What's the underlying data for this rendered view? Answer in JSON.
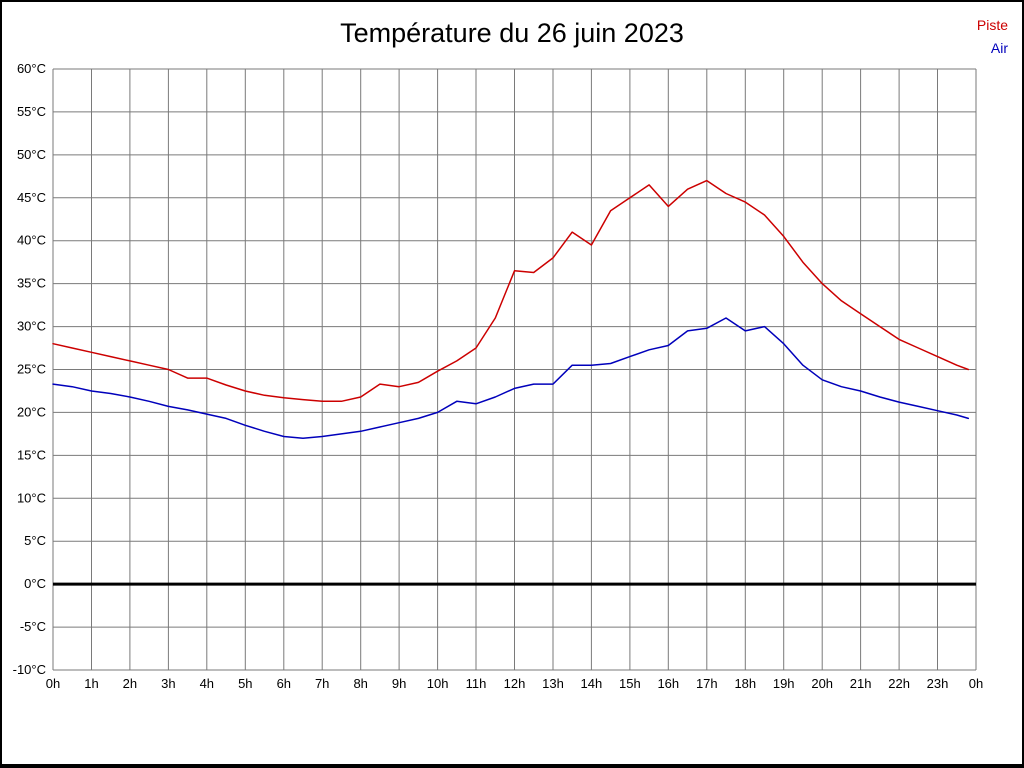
{
  "chart_data": {
    "type": "line",
    "title": "Température du 26 juin 2023",
    "xlabel": "",
    "ylabel": "",
    "xlim": [
      0,
      24
    ],
    "ylim": [
      -10,
      60
    ],
    "grid": true,
    "grid_color": "#7a7a7a",
    "zero_line_color": "#000000",
    "legend_position": "top-right",
    "xticks": {
      "values": [
        0,
        1,
        2,
        3,
        4,
        5,
        6,
        7,
        8,
        9,
        10,
        11,
        12,
        13,
        14,
        15,
        16,
        17,
        18,
        19,
        20,
        21,
        22,
        23,
        24
      ],
      "labels": [
        "0h",
        "1h",
        "2h",
        "3h",
        "4h",
        "5h",
        "6h",
        "7h",
        "8h",
        "9h",
        "10h",
        "11h",
        "12h",
        "13h",
        "14h",
        "15h",
        "16h",
        "17h",
        "18h",
        "19h",
        "20h",
        "21h",
        "22h",
        "23h",
        "0h"
      ]
    },
    "yticks": {
      "values": [
        60,
        55,
        50,
        45,
        40,
        35,
        30,
        25,
        20,
        15,
        10,
        5,
        0,
        -5,
        -10
      ],
      "labels": [
        "60°C",
        "55°C",
        "50°C",
        "45°C",
        "40°C",
        "35°C",
        "30°C",
        "25°C",
        "20°C",
        "15°C",
        "10°C",
        "5°C",
        "0°C",
        "-5°C",
        "-10°C"
      ]
    },
    "x": [
      0,
      0.5,
      1,
      1.5,
      2,
      2.5,
      3,
      3.5,
      4,
      4.5,
      5,
      5.5,
      6,
      6.5,
      7,
      7.5,
      8,
      8.5,
      9,
      9.5,
      10,
      10.5,
      11,
      11.5,
      12,
      12.5,
      13,
      13.5,
      14,
      14.5,
      15,
      15.5,
      16,
      16.5,
      17,
      17.5,
      18,
      18.5,
      19,
      19.5,
      20,
      20.5,
      21,
      21.5,
      22,
      22.5,
      23,
      23.5,
      23.8
    ],
    "series": [
      {
        "name": "Piste",
        "color": "#cc0000",
        "values": [
          28,
          27.5,
          27,
          26.5,
          26,
          25.5,
          25,
          24,
          24,
          23.2,
          22.5,
          22,
          21.7,
          21.5,
          21.3,
          21.3,
          21.8,
          23.3,
          23,
          23.5,
          24.8,
          26,
          27.5,
          31,
          36.5,
          36.3,
          38,
          41,
          39.5,
          43.5,
          45,
          46.5,
          44,
          46,
          47,
          45.5,
          44.5,
          43,
          40.5,
          37.5,
          35,
          33,
          31.5,
          30,
          28.5,
          27.5,
          26.5,
          25.5,
          25
        ]
      },
      {
        "name": "Air",
        "color": "#0000bb",
        "values": [
          23.3,
          23,
          22.5,
          22.2,
          21.8,
          21.3,
          20.7,
          20.3,
          19.8,
          19.3,
          18.5,
          17.8,
          17.2,
          17,
          17.2,
          17.5,
          17.8,
          18.3,
          18.8,
          19.3,
          20,
          21.3,
          21,
          21.8,
          22.8,
          23.3,
          23.3,
          25.5,
          25.5,
          25.7,
          26.5,
          27.3,
          27.8,
          29.5,
          29.8,
          31,
          29.5,
          30,
          28,
          25.5,
          23.8,
          23,
          22.5,
          21.8,
          21.2,
          20.7,
          20.2,
          19.7,
          19.3
        ]
      }
    ]
  }
}
